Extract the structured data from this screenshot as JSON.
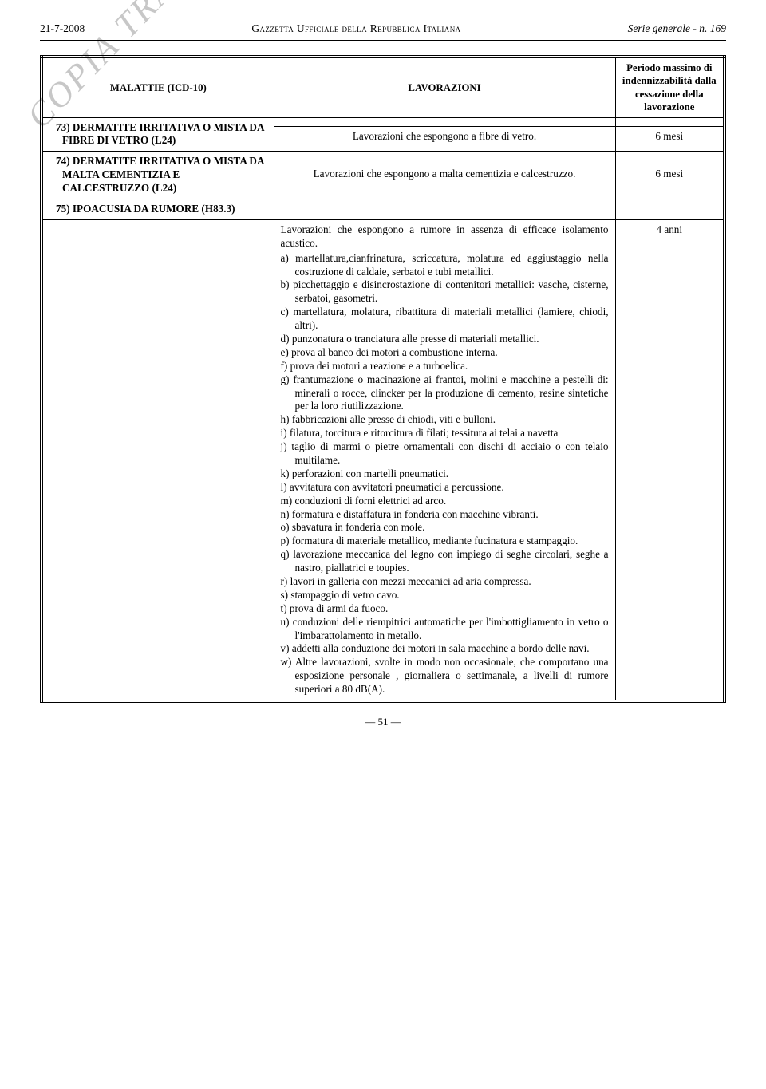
{
  "header": {
    "date": "21-7-2008",
    "center": "Gazzetta Ufficiale della Repubblica Italiana",
    "right": "Serie generale - n. 169"
  },
  "watermark": "COPIA TRATTA DA GURITEL — GAZZETTA UFFICIALE ON-LINE",
  "page_number": "— 51 —",
  "table": {
    "headers": {
      "col1": "MALATTIE (ICD-10)",
      "col2": "LAVORAZIONI",
      "col3": "Periodo massimo di indennizzabilità dalla cessazione della lavorazione"
    },
    "rows": {
      "r73": {
        "title": "73) DERMATITE IRRITATIVA O MISTA DA FIBRE DI VETRO (L24)",
        "lav": "Lavorazioni che espongono a fibre di vetro.",
        "period": "6 mesi"
      },
      "r74": {
        "title": "74) DERMATITE IRRITATIVA O MISTA DA MALTA CEMENTIZIA E CALCESTRUZZO (L24)",
        "lav": "Lavorazioni che espongono a malta cementizia e calcestruzzo.",
        "period": "6 mesi"
      },
      "r75": {
        "title": "75) IPOACUSIA DA RUMORE (H83.3)",
        "intro": "Lavorazioni che espongono a rumore in assenza di efficace isolamento acustico.",
        "a": "a) martellatura,cianfrinatura, scriccatura, molatura ed aggiustaggio nella costruzione di caldaie, serbatoi e tubi metallici.",
        "b": "b) picchettaggio e disincrostazione di contenitori metallici: vasche, cisterne, serbatoi, gasometri.",
        "c": "c) martellatura, molatura, ribattitura di materiali metallici (lamiere, chiodi, altri).",
        "d": "d) punzonatura o tranciatura alle presse di materiali metallici.",
        "e": "e) prova al banco dei motori a combustione interna.",
        "f": "f) prova dei motori a reazione e a turboelica.",
        "g": "g) frantumazione o macinazione ai frantoi, molini e macchine a pestelli di: minerali o rocce, clincker per la produzione di cemento, resine sintetiche per la loro riutilizzazione.",
        "h": "h) fabbricazioni alle presse di chiodi, viti e bulloni.",
        "i": "i) filatura, torcitura e ritorcitura di filati; tessitura ai telai a navetta",
        "j": "j) taglio di marmi o pietre ornamentali con dischi di acciaio o con telaio multilame.",
        "k": "k) perforazioni con martelli pneumatici.",
        "l": "l) avvitatura con avvitatori pneumatici a percussione.",
        "m": "m) conduzioni di forni elettrici ad arco.",
        "n": "n) formatura e distaffatura in fonderia con macchine vibranti.",
        "o": "o) sbavatura in fonderia con mole.",
        "p": "p) formatura di materiale metallico, mediante fucinatura e stampaggio.",
        "q": "q) lavorazione meccanica del legno con impiego di seghe circolari, seghe a nastro, piallatrici e toupies.",
        "r": "r) lavori in galleria con mezzi meccanici ad aria compressa.",
        "s": "s) stampaggio di vetro cavo.",
        "t": "t) prova di armi da fuoco.",
        "u": "u) conduzioni delle riempitrici automatiche per l'imbottigliamento in vetro o l'imbarattolamento in metallo.",
        "v": "v) addetti alla conduzione dei motori in sala macchine a bordo delle navi.",
        "w": "w) Altre lavorazioni, svolte in modo non occasionale, che comportano una esposizione personale , giornaliera o settimanale, a livelli di rumore superiori a 80 dB(A).",
        "period": "4 anni"
      }
    }
  }
}
